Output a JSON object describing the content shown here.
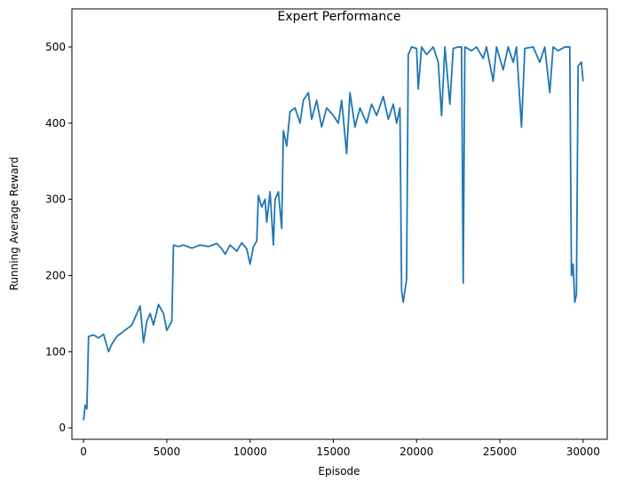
{
  "chart_data": {
    "type": "line",
    "title": "Expert Performance",
    "x_label": "Episode",
    "y_label": "Running Average Reward",
    "x": [
      0,
      100,
      200,
      300,
      600,
      900,
      1200,
      1500,
      1700,
      2000,
      2300,
      2600,
      2900,
      3200,
      3400,
      3600,
      3800,
      4000,
      4200,
      4500,
      4800,
      5000,
      5300,
      5400,
      5700,
      6000,
      6500,
      7000,
      7500,
      8000,
      8300,
      8500,
      8800,
      9200,
      9500,
      9800,
      10000,
      10200,
      10400,
      10500,
      10700,
      10900,
      11000,
      11200,
      11400,
      11500,
      11700,
      11900,
      12000,
      12200,
      12400,
      12700,
      13000,
      13200,
      13500,
      13700,
      14000,
      14300,
      14600,
      15000,
      15300,
      15500,
      15800,
      16000,
      16300,
      16600,
      17000,
      17300,
      17600,
      18000,
      18300,
      18600,
      18800,
      19000,
      19100,
      19200,
      19400,
      19500,
      19700,
      20000,
      20100,
      20300,
      20600,
      21000,
      21300,
      21500,
      21700,
      22000,
      22200,
      22500,
      22700,
      22800,
      22900,
      23300,
      23600,
      24000,
      24200,
      24600,
      24800,
      25200,
      25500,
      25800,
      26000,
      26300,
      26500,
      27000,
      27400,
      27700,
      28000,
      28200,
      28500,
      28900,
      29200,
      29300,
      29400,
      29500,
      29600,
      29700,
      29900,
      30000
    ],
    "values": [
      10,
      30,
      25,
      120,
      122,
      118,
      123,
      100,
      110,
      120,
      125,
      130,
      135,
      150,
      160,
      112,
      140,
      150,
      135,
      162,
      150,
      128,
      140,
      240,
      238,
      240,
      236,
      240,
      238,
      242,
      235,
      228,
      240,
      232,
      243,
      235,
      215,
      238,
      245,
      305,
      290,
      300,
      270,
      310,
      240,
      300,
      310,
      262,
      390,
      370,
      415,
      420,
      400,
      430,
      440,
      405,
      430,
      395,
      420,
      410,
      400,
      430,
      360,
      440,
      395,
      420,
      400,
      425,
      410,
      435,
      405,
      425,
      400,
      420,
      180,
      165,
      195,
      490,
      500,
      498,
      445,
      500,
      490,
      500,
      480,
      410,
      500,
      425,
      498,
      500,
      500,
      190,
      500,
      495,
      500,
      485,
      500,
      455,
      500,
      470,
      500,
      480,
      500,
      395,
      498,
      500,
      480,
      500,
      440,
      500,
      495,
      500,
      500,
      200,
      215,
      165,
      175,
      475,
      480,
      455
    ],
    "color": "#1f77b4",
    "xlim": [
      -700,
      31450
    ],
    "ylim": [
      -15,
      550
    ],
    "xticks": [
      0,
      5000,
      10000,
      15000,
      20000,
      25000,
      30000
    ],
    "yticks": [
      0,
      100,
      200,
      300,
      400,
      500
    ]
  }
}
